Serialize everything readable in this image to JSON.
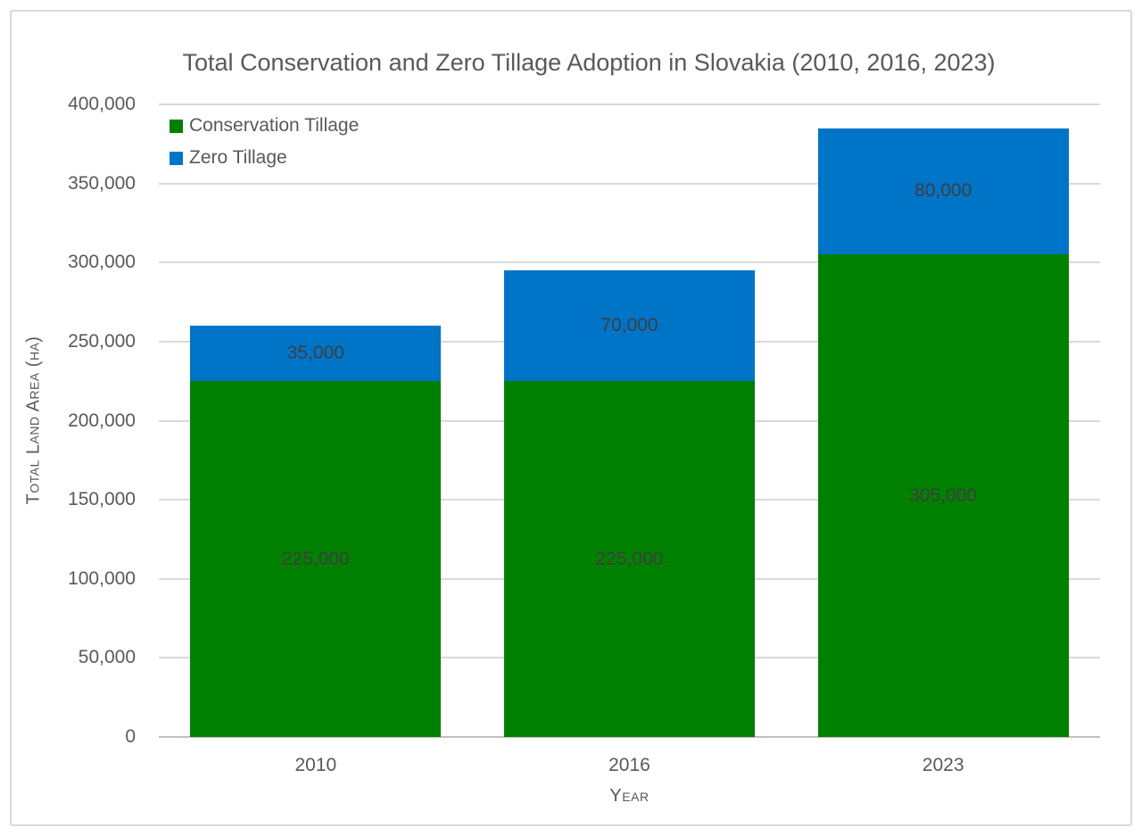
{
  "chart_data": {
    "type": "bar",
    "stacked": true,
    "title": "Total Conservation and Zero Tillage Adoption in Slovakia (2010, 2016, 2023)",
    "xlabel": "Year",
    "ylabel": "Total Land Area (ha)",
    "categories": [
      "2010",
      "2016",
      "2023"
    ],
    "series": [
      {
        "name": "Conservation Tillage",
        "color": "#008000",
        "values": [
          225000,
          225000,
          305000
        ],
        "labels": [
          "225,000",
          "225,000",
          "305,000"
        ]
      },
      {
        "name": "Zero Tillage",
        "color": "#0074C7",
        "values": [
          35000,
          70000,
          80000
        ],
        "labels": [
          "35,000",
          "70,000",
          "80,000"
        ]
      }
    ],
    "ylim": [
      0,
      400000
    ],
    "ytick_step": 50000,
    "yticks": [
      "400,000",
      "350,000",
      "300,000",
      "250,000",
      "200,000",
      "150,000",
      "100,000",
      "50,000",
      "0"
    ],
    "grid": true,
    "legend_position": "top-left-inside"
  },
  "colors": {
    "grid": "#D9D9D9",
    "axis_line": "#BFBFBF",
    "text_muted": "#595959",
    "data_label": "#3f3f3f",
    "frame_border": "#D9D9D9",
    "background": "#ffffff"
  }
}
